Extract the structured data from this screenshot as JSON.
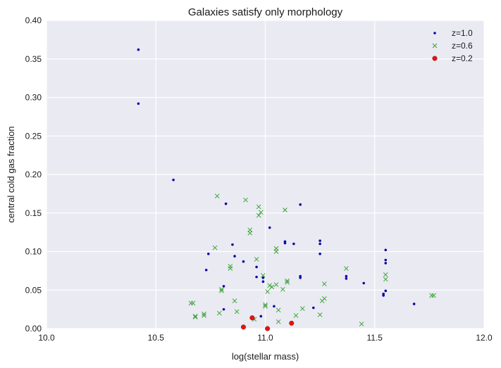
{
  "chart_data": {
    "type": "scatter",
    "title": "Galaxies satisfy only morphology",
    "xlabel": "log(stellar mass)",
    "ylabel": "central cold gas fraction",
    "xlim": [
      10.0,
      12.0
    ],
    "ylim": [
      0.0,
      0.4
    ],
    "xticks": [
      10.0,
      10.5,
      11.0,
      11.5,
      12.0
    ],
    "xtick_labels": [
      "10.0",
      "10.5",
      "11.0",
      "11.5",
      "12.0"
    ],
    "yticks": [
      0.0,
      0.05,
      0.1,
      0.15,
      0.2,
      0.25,
      0.3,
      0.35,
      0.4
    ],
    "ytick_labels": [
      "0.00",
      "0.05",
      "0.10",
      "0.15",
      "0.20",
      "0.25",
      "0.30",
      "0.35",
      "0.40"
    ],
    "grid": true,
    "legend_position": "top-right",
    "series": [
      {
        "name": "z=1.0",
        "marker": "dot",
        "color": "#0a0aa5",
        "points": [
          [
            10.42,
            0.362
          ],
          [
            10.42,
            0.292
          ],
          [
            10.58,
            0.193
          ],
          [
            10.73,
            0.076
          ],
          [
            10.74,
            0.097
          ],
          [
            10.81,
            0.055
          ],
          [
            10.81,
            0.025
          ],
          [
            10.82,
            0.162
          ],
          [
            10.85,
            0.109
          ],
          [
            10.86,
            0.094
          ],
          [
            10.9,
            0.087
          ],
          [
            10.96,
            0.08
          ],
          [
            10.96,
            0.067
          ],
          [
            10.98,
            0.016
          ],
          [
            10.99,
            0.066
          ],
          [
            10.99,
            0.061
          ],
          [
            11.02,
            0.131
          ],
          [
            11.04,
            0.029
          ],
          [
            11.09,
            0.111
          ],
          [
            11.09,
            0.113
          ],
          [
            11.13,
            0.11
          ],
          [
            11.16,
            0.161
          ],
          [
            11.16,
            0.068
          ],
          [
            11.16,
            0.066
          ],
          [
            11.22,
            0.027
          ],
          [
            11.25,
            0.097
          ],
          [
            11.25,
            0.11
          ],
          [
            11.25,
            0.114
          ],
          [
            11.37,
            0.068
          ],
          [
            11.37,
            0.065
          ],
          [
            11.45,
            0.059
          ],
          [
            11.54,
            0.043
          ],
          [
            11.54,
            0.045
          ],
          [
            11.55,
            0.049
          ],
          [
            11.55,
            0.085
          ],
          [
            11.55,
            0.089
          ],
          [
            11.55,
            0.102
          ],
          [
            11.68,
            0.032
          ]
        ]
      },
      {
        "name": "z=0.6",
        "marker": "x",
        "color": "#2ca02c",
        "points": [
          [
            10.66,
            0.033
          ],
          [
            10.67,
            0.033
          ],
          [
            10.68,
            0.015
          ],
          [
            10.68,
            0.016
          ],
          [
            10.72,
            0.019
          ],
          [
            10.72,
            0.017
          ],
          [
            10.77,
            0.105
          ],
          [
            10.78,
            0.172
          ],
          [
            10.79,
            0.02
          ],
          [
            10.8,
            0.049
          ],
          [
            10.8,
            0.051
          ],
          [
            10.84,
            0.078
          ],
          [
            10.84,
            0.081
          ],
          [
            10.86,
            0.036
          ],
          [
            10.87,
            0.022
          ],
          [
            10.91,
            0.167
          ],
          [
            10.93,
            0.128
          ],
          [
            10.93,
            0.124
          ],
          [
            10.95,
            0.012
          ],
          [
            10.96,
            0.09
          ],
          [
            10.97,
            0.158
          ],
          [
            10.97,
            0.147
          ],
          [
            10.98,
            0.151
          ],
          [
            10.99,
            0.069
          ],
          [
            11.0,
            0.029
          ],
          [
            11.0,
            0.031
          ],
          [
            11.01,
            0.048
          ],
          [
            11.02,
            0.056
          ],
          [
            11.03,
            0.054
          ],
          [
            11.05,
            0.104
          ],
          [
            11.05,
            0.1
          ],
          [
            11.05,
            0.057
          ],
          [
            11.06,
            0.024
          ],
          [
            11.06,
            0.009
          ],
          [
            11.08,
            0.051
          ],
          [
            11.09,
            0.154
          ],
          [
            11.1,
            0.062
          ],
          [
            11.1,
            0.06
          ],
          [
            11.14,
            0.017
          ],
          [
            11.17,
            0.026
          ],
          [
            11.25,
            0.018
          ],
          [
            11.26,
            0.036
          ],
          [
            11.27,
            0.039
          ],
          [
            11.27,
            0.058
          ],
          [
            11.37,
            0.078
          ],
          [
            11.44,
            0.006
          ],
          [
            11.55,
            0.07
          ],
          [
            11.55,
            0.064
          ],
          [
            11.76,
            0.043
          ],
          [
            11.77,
            0.043
          ]
        ]
      },
      {
        "name": "z=0.2",
        "marker": "circle",
        "color": "#e3140f",
        "points": [
          [
            10.9,
            0.002
          ],
          [
            10.94,
            0.014
          ],
          [
            11.01,
            0.0
          ],
          [
            11.12,
            0.007
          ]
        ]
      }
    ]
  }
}
